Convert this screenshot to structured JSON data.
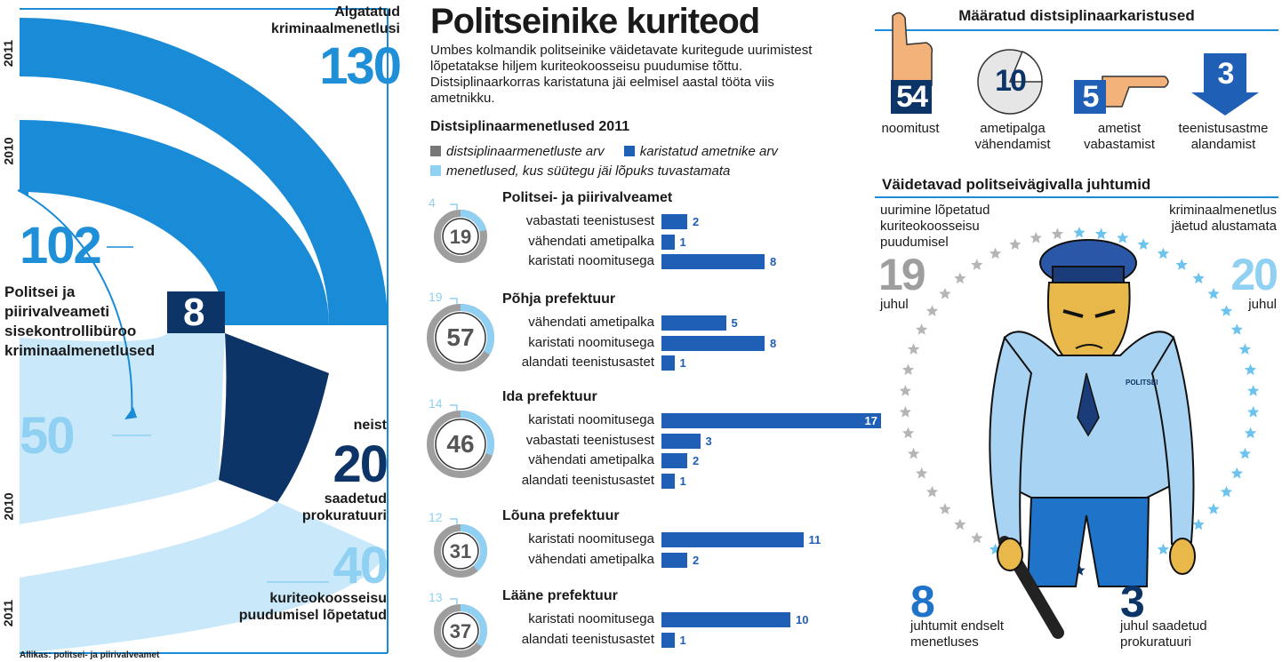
{
  "left": {
    "year_2011_top": "2011",
    "year_2010_top": "2010",
    "year_2010_bottom": "2010",
    "year_2011_bottom": "2011",
    "started_label": "Algatatud kriminaalmenetlusi",
    "started_value": "130",
    "inner_value": "102",
    "inner_label": "Politsei ja piirivalveameti sisekontrollibüroo kriminaalmenetlused",
    "inner_small": "8",
    "light_value": "50",
    "neist_label": "neist",
    "sent_value": "20",
    "sent_label": "saadetud prokuratuuri",
    "ended_value": "40",
    "ended_label": "kuriteokoosseisu puudumisel lõpetatud",
    "source": "Allikas: politsei- ja piirivalveamet"
  },
  "middle": {
    "title": "Politseinike kuriteod",
    "intro": "Umbes kolmandik politseinike väidetavate kuritegude uurimistest lõpetatakse hiljem kuriteokoosseisu puudumise tõttu. Distsiplinaarkorras karistatuna jäi eelmisel aastal tööta viis ametnikku.",
    "chart_title": "Distsiplinaarmenetlused 2011",
    "legend": [
      "distsiplinaarmenetluste arv",
      "karistatud ametnike arv",
      "menetlused, kus süütegu jäi lõpuks tuvastamata"
    ]
  },
  "chart_data": {
    "type": "bar",
    "title": "Distsiplinaarmenetlused 2011",
    "groups": [
      {
        "name": "Politsei- ja piirivalveamet",
        "total": 19,
        "unproven": 4,
        "categories": [
          "vabastati teenistusest",
          "vähendati ametipalka",
          "karistati noomitusega"
        ],
        "values": [
          2,
          1,
          8
        ]
      },
      {
        "name": "Põhja prefektuur",
        "total": 57,
        "unproven": 19,
        "categories": [
          "vähendati ametipalka",
          "karistati noomitusega",
          "alandati teenistusastet"
        ],
        "values": [
          5,
          8,
          1
        ]
      },
      {
        "name": "Ida prefektuur",
        "total": 46,
        "unproven": 14,
        "categories": [
          "karistati noomitusega",
          "vabastati teenistusest",
          "vähendati ametipalka",
          "alandati teenistusastet"
        ],
        "values": [
          17,
          3,
          2,
          1
        ]
      },
      {
        "name": "Lõuna prefektuur",
        "total": 31,
        "unproven": 12,
        "categories": [
          "karistati noomitusega",
          "vähendati ametipalka"
        ],
        "values": [
          11,
          2
        ]
      },
      {
        "name": "Lääne prefektuur",
        "total": 37,
        "unproven": 13,
        "categories": [
          "karistati noomitusega",
          "alandati teenistusastet"
        ],
        "values": [
          10,
          1
        ]
      }
    ]
  },
  "right": {
    "penalties_title": "Määratud distsiplinaarkaristused",
    "penalties": [
      {
        "value": "54",
        "label": "noomitust"
      },
      {
        "value": "10",
        "label": "ametipalga vähendamist"
      },
      {
        "value": "5",
        "label": "ametist vabastamist"
      },
      {
        "value": "3",
        "label": "teenistusastme alandamist"
      }
    ],
    "violence_title": "Väidetavad politseivägivalla juhtumid",
    "ended_label": "uurimine lõpetatud kuriteokoosseisu puudumisel",
    "ended_value": "19",
    "ended_unit": "juhul",
    "notstarted_label": "kriminaalmenetlus jäetud alustamata",
    "notstarted_value": "20",
    "notstarted_unit": "juhul",
    "ongoing_value": "8",
    "ongoing_label": "juhtumit endselt menetluses",
    "sent_value": "3",
    "sent_label": "juhul saadetud prokuratuuri",
    "badge_text": "POLITSEI",
    "colors": {
      "grey_star": "#b5b5b5",
      "light_star": "#6cc4ee",
      "dark_star": "#0d3466"
    }
  }
}
